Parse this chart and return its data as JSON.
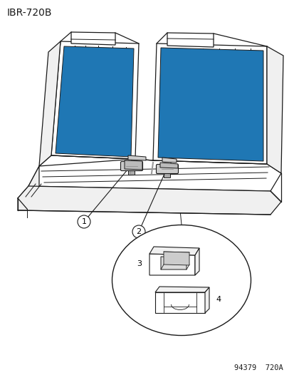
{
  "background_color": "#ffffff",
  "diagram_id": "IBR-720B",
  "footer_text": "94379  720A",
  "line_color": "#1a1a1a",
  "title_fontsize": 10,
  "label_fontsize": 8,
  "footer_fontsize": 7.5
}
